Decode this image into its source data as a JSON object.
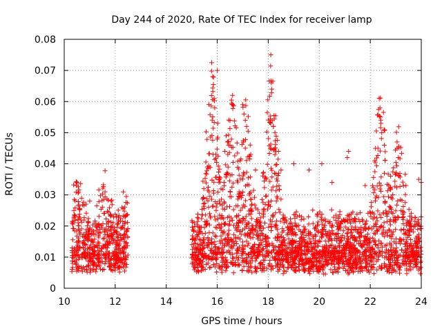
{
  "chart_data": {
    "type": "scatter",
    "title": "Day 244 of 2020, Rate Of TEC Index for receiver lamp",
    "xlabel": "GPS time / hours",
    "ylabel": "ROTI / TECUs",
    "xlim": [
      10,
      24
    ],
    "ylim": [
      0,
      0.08
    ],
    "x_ticks": [
      "10",
      "12",
      "14",
      "16",
      "18",
      "20",
      "22",
      "24"
    ],
    "y_ticks": [
      "0",
      "0.01",
      "0.02",
      "0.03",
      "0.04",
      "0.05",
      "0.06",
      "0.07",
      "0.08"
    ],
    "grid": true,
    "marker": "+",
    "series": [
      {
        "name": "ROTI",
        "color": "#ff0000",
        "segments": [
          {
            "x_start": 10.3,
            "x_end": 12.5,
            "baseline": 0.011,
            "spread": 0.008,
            "peaks": [
              [
                10.5,
                0.034
              ],
              [
                11.6,
                0.031
              ],
              [
                12.4,
                0.023
              ]
            ]
          },
          {
            "x_start": 15.0,
            "x_end": 24.0,
            "baseline": 0.01,
            "spread": 0.009,
            "peaks": [
              [
                15.8,
                0.072
              ],
              [
                16.6,
                0.062
              ],
              [
                17.1,
                0.058
              ],
              [
                18.1,
                0.075
              ],
              [
                22.4,
                0.061
              ],
              [
                23.1,
                0.047
              ]
            ]
          }
        ],
        "points": [
          [
            15.78,
            0.0725
          ],
          [
            15.82,
            0.068
          ],
          [
            15.85,
            0.0655
          ],
          [
            15.88,
            0.061
          ],
          [
            15.9,
            0.058
          ],
          [
            16.0,
            0.07
          ],
          [
            16.02,
            0.053
          ],
          [
            16.6,
            0.062
          ],
          [
            17.0,
            0.059
          ],
          [
            17.05,
            0.056
          ],
          [
            17.1,
            0.054
          ],
          [
            17.15,
            0.052
          ],
          [
            18.1,
            0.075
          ],
          [
            18.12,
            0.066
          ],
          [
            18.14,
            0.064
          ],
          [
            18.2,
            0.052
          ],
          [
            18.3,
            0.044
          ],
          [
            18.4,
            0.044
          ],
          [
            22.35,
            0.061
          ],
          [
            22.38,
            0.058
          ],
          [
            22.4,
            0.055
          ],
          [
            22.42,
            0.053
          ],
          [
            22.45,
            0.05
          ],
          [
            22.3,
            0.045
          ],
          [
            23.05,
            0.047
          ],
          [
            23.1,
            0.042
          ],
          [
            21.15,
            0.044
          ],
          [
            21.1,
            0.042
          ],
          [
            20.1,
            0.04
          ],
          [
            19.0,
            0.04
          ],
          [
            10.5,
            0.034
          ],
          [
            10.48,
            0.033
          ],
          [
            11.6,
            0.031
          ],
          [
            11.0,
            0.028
          ],
          [
            12.4,
            0.023
          ],
          [
            15.1,
            0.021
          ],
          [
            15.2,
            0.018
          ],
          [
            16.35,
            0.049
          ],
          [
            16.4,
            0.047
          ],
          [
            16.5,
            0.046
          ],
          [
            16.3,
            0.044
          ],
          [
            16.9,
            0.041
          ],
          [
            17.5,
            0.038
          ],
          [
            17.8,
            0.037
          ],
          [
            18.5,
            0.038
          ],
          [
            19.6,
            0.038
          ],
          [
            20.5,
            0.034
          ],
          [
            21.8,
            0.033
          ],
          [
            22.8,
            0.036
          ],
          [
            23.4,
            0.033
          ],
          [
            23.9,
            0.035
          ],
          [
            24.0,
            0.034
          ]
        ]
      }
    ]
  }
}
